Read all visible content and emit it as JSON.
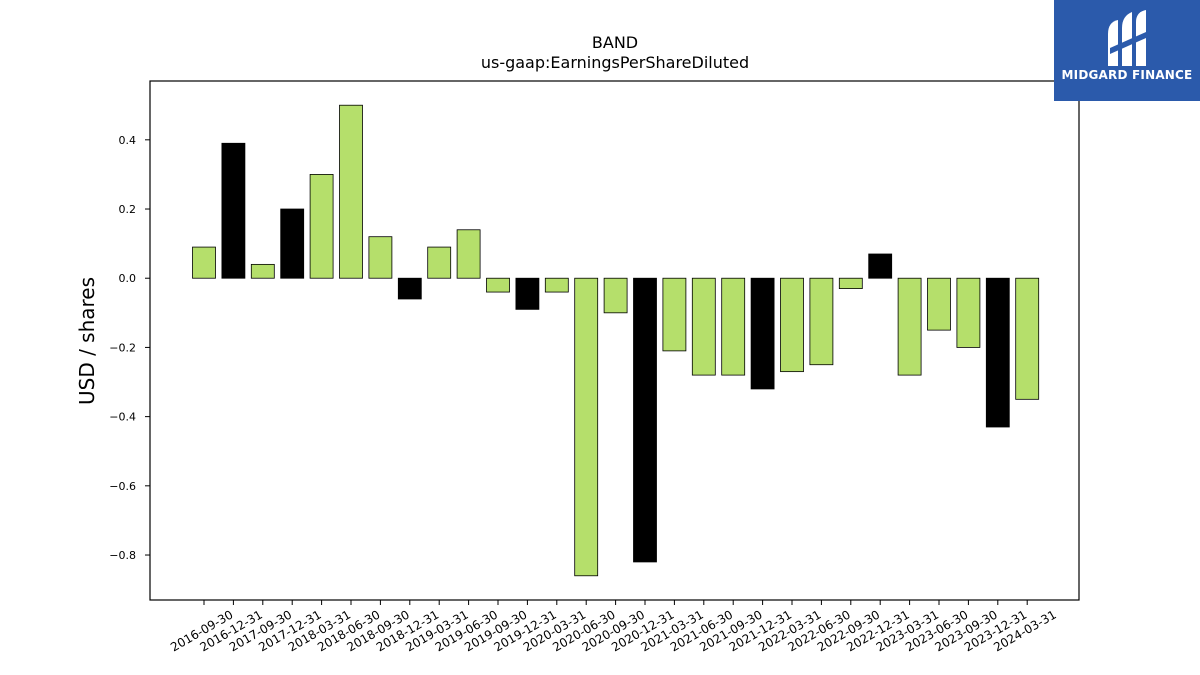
{
  "logo": {
    "text": "MIDGARD FINANCE",
    "bg_color": "#2b5aab"
  },
  "chart_data": {
    "type": "bar",
    "title": "BAND",
    "subtitle": "us-gaap:EarningsPerShareDiluted",
    "ylabel": "USD / shares",
    "xlabel": "",
    "ylim": [
      -0.93,
      0.57
    ],
    "yticks": [
      0.4,
      0.2,
      0.0,
      -0.2,
      -0.4,
      -0.6,
      -0.8
    ],
    "ytick_labels": [
      "0.4",
      "0.2",
      "0.0",
      "−0.2",
      "−0.4",
      "−0.6",
      "−0.8"
    ],
    "grid": false,
    "colors": {
      "quarter": "#b5df6b",
      "annual": "#000000",
      "edge": "#000000"
    },
    "categories": [
      "2016-09-30",
      "2016-12-31",
      "2017-09-30",
      "2017-12-31",
      "2018-03-31",
      "2018-06-30",
      "2018-09-30",
      "2018-12-31",
      "2019-03-31",
      "2019-06-30",
      "2019-09-30",
      "2019-12-31",
      "2020-03-31",
      "2020-06-30",
      "2020-09-30",
      "2020-12-31",
      "2021-03-31",
      "2021-06-30",
      "2021-09-30",
      "2021-12-31",
      "2022-03-31",
      "2022-06-30",
      "2022-09-30",
      "2022-12-31",
      "2023-03-31",
      "2023-06-30",
      "2023-09-30",
      "2023-12-31",
      "2024-03-31"
    ],
    "values": [
      0.09,
      0.39,
      0.04,
      0.2,
      0.3,
      0.5,
      0.12,
      -0.06,
      0.09,
      0.14,
      -0.04,
      -0.09,
      -0.04,
      -0.86,
      -0.1,
      -0.82,
      -0.21,
      -0.28,
      -0.28,
      -0.32,
      -0.27,
      -0.25,
      -0.03,
      0.07,
      -0.28,
      -0.15,
      -0.2,
      -0.43,
      -0.35
    ],
    "annual": [
      false,
      true,
      false,
      true,
      false,
      false,
      false,
      true,
      false,
      false,
      false,
      true,
      false,
      false,
      false,
      true,
      false,
      false,
      false,
      true,
      false,
      false,
      false,
      true,
      false,
      false,
      false,
      true,
      false
    ]
  }
}
